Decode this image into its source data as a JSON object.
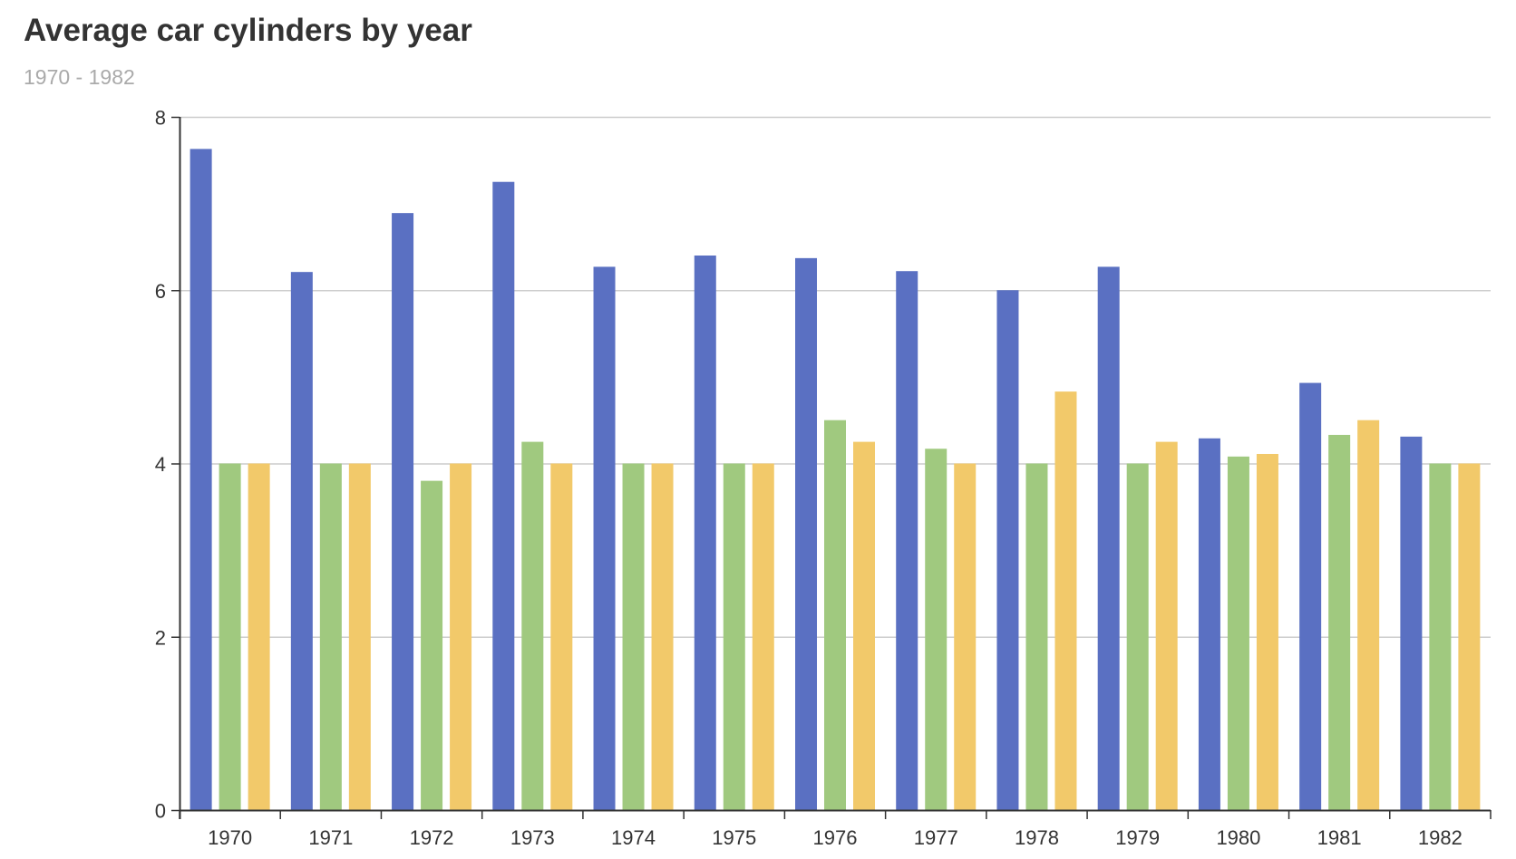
{
  "chart_data": {
    "type": "bar",
    "title": "Average car cylinders by year",
    "subtitle": "1970 - 1982",
    "xlabel": "",
    "ylabel": "",
    "ylim": [
      0,
      8
    ],
    "yticks": [
      0,
      2,
      4,
      6,
      8
    ],
    "grid": true,
    "categories": [
      "1970",
      "1971",
      "1972",
      "1973",
      "1974",
      "1975",
      "1976",
      "1977",
      "1978",
      "1979",
      "1980",
      "1981",
      "1982"
    ],
    "series": [
      {
        "color": "#5a70c2",
        "values": [
          7.63,
          6.21,
          6.89,
          7.25,
          6.27,
          6.4,
          6.37,
          6.22,
          6.0,
          6.27,
          4.29,
          4.93,
          4.31
        ]
      },
      {
        "color": "#a0c97f",
        "values": [
          4.0,
          4.0,
          3.8,
          4.25,
          4.0,
          4.0,
          4.5,
          4.17,
          4.0,
          4.0,
          4.08,
          4.33,
          4.0
        ]
      },
      {
        "color": "#f2c96a",
        "values": [
          4.0,
          4.0,
          4.0,
          4.0,
          4.0,
          4.0,
          4.25,
          4.0,
          4.83,
          4.25,
          4.11,
          4.5,
          4.0
        ]
      }
    ]
  }
}
